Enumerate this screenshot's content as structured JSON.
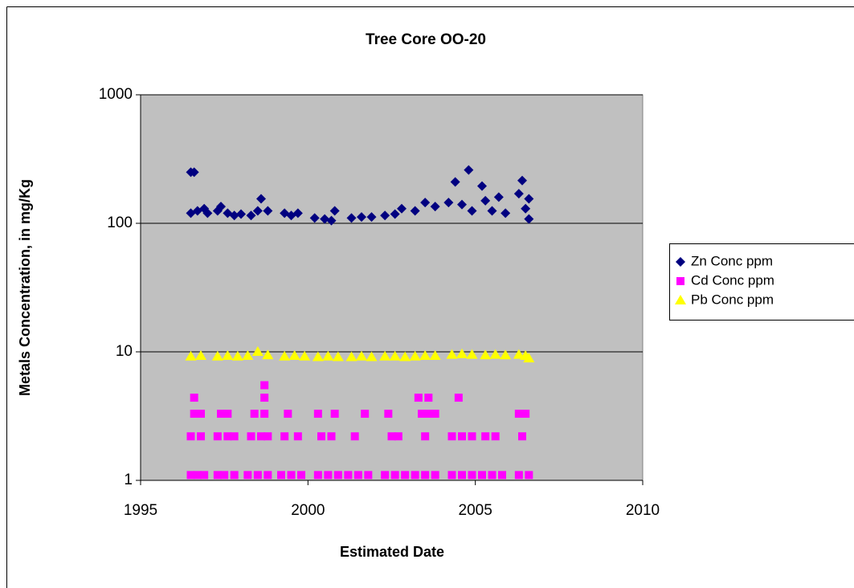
{
  "chart_data": {
    "type": "scatter",
    "title": "Tree Core OO-20",
    "x_label": "Estimated Date",
    "y_label": "Metals Concentration, in mg/Kg",
    "xlim": [
      1995,
      2010
    ],
    "xticks": [
      1995,
      2000,
      2005,
      2010
    ],
    "ylim": [
      1,
      1000
    ],
    "yticks": [
      1,
      10,
      100,
      1000
    ],
    "y_log": true,
    "grid": true,
    "legend": "right",
    "background": "#c0c0c0",
    "series": [
      {
        "name": "Zn Conc ppm",
        "color": "#000080",
        "marker": "diamond",
        "x": [
          1996.5,
          1996.6,
          1996.5,
          1996.7,
          1996.9,
          1997.0,
          1997.3,
          1997.4,
          1997.6,
          1997.8,
          1998.0,
          1998.3,
          1998.5,
          1998.6,
          1998.8,
          1999.3,
          1999.5,
          1999.7,
          2000.2,
          2000.5,
          2000.7,
          2000.8,
          2001.3,
          2001.6,
          2001.9,
          2002.3,
          2002.6,
          2002.8,
          2003.2,
          2003.5,
          2003.8,
          2004.2,
          2004.4,
          2004.6,
          2004.8,
          2004.9,
          2005.2,
          2005.3,
          2005.5,
          2005.7,
          2005.9,
          2006.3,
          2006.4,
          2006.5,
          2006.6,
          2006.6
        ],
        "values": [
          250,
          250,
          120,
          125,
          130,
          120,
          125,
          135,
          120,
          115,
          118,
          115,
          125,
          155,
          125,
          120,
          115,
          120,
          110,
          108,
          105,
          125,
          110,
          112,
          112,
          115,
          118,
          130,
          125,
          145,
          135,
          145,
          210,
          140,
          260,
          125,
          195,
          150,
          125,
          160,
          120,
          170,
          215,
          130,
          155,
          108
        ]
      },
      {
        "name": "Cd Conc ppm",
        "color": "#ff00ff",
        "marker": "square",
        "x": [
          1996.5,
          1996.7,
          1996.9,
          1997.3,
          1997.5,
          1997.8,
          1998.2,
          1998.5,
          1998.8,
          1999.2,
          1999.5,
          1999.8,
          2000.3,
          2000.6,
          2000.9,
          2001.2,
          2001.5,
          2001.8,
          2002.3,
          2002.6,
          2002.9,
          2003.2,
          2003.5,
          2003.8,
          2004.3,
          2004.6,
          2004.9,
          2005.2,
          2005.5,
          2005.8,
          2006.3,
          2006.6,
          1996.5,
          1996.8,
          1997.3,
          1997.6,
          1997.8,
          1998.3,
          1998.6,
          1998.8,
          1999.3,
          1999.7,
          2000.4,
          2000.7,
          2001.4,
          2002.5,
          2002.7,
          2003.5,
          2004.3,
          2004.6,
          2004.9,
          2005.3,
          2005.6,
          2006.4,
          1996.6,
          1996.8,
          1997.4,
          1997.6,
          1998.4,
          1998.7,
          1999.4,
          2000.3,
          2000.8,
          2001.7,
          2002.4,
          2003.4,
          2003.6,
          2003.8,
          2006.3,
          2006.5,
          1996.6,
          1998.7,
          2003.3,
          2003.6,
          2004.5,
          1998.7
        ],
        "values": [
          1.1,
          1.1,
          1.1,
          1.1,
          1.1,
          1.1,
          1.1,
          1.1,
          1.1,
          1.1,
          1.1,
          1.1,
          1.1,
          1.1,
          1.1,
          1.1,
          1.1,
          1.1,
          1.1,
          1.1,
          1.1,
          1.1,
          1.1,
          1.1,
          1.1,
          1.1,
          1.1,
          1.1,
          1.1,
          1.1,
          1.1,
          1.1,
          2.2,
          2.2,
          2.2,
          2.2,
          2.2,
          2.2,
          2.2,
          2.2,
          2.2,
          2.2,
          2.2,
          2.2,
          2.2,
          2.2,
          2.2,
          2.2,
          2.2,
          2.2,
          2.2,
          2.2,
          2.2,
          2.2,
          3.3,
          3.3,
          3.3,
          3.3,
          3.3,
          3.3,
          3.3,
          3.3,
          3.3,
          3.3,
          3.3,
          3.3,
          3.3,
          3.3,
          3.3,
          3.3,
          4.4,
          4.4,
          4.4,
          4.4,
          4.4,
          5.5
        ]
      },
      {
        "name": "Pb Conc ppm",
        "color": "#ffff00",
        "marker": "triangle",
        "x": [
          1996.5,
          1996.8,
          1997.3,
          1997.6,
          1997.9,
          1998.2,
          1998.5,
          1998.8,
          1999.3,
          1999.6,
          1999.9,
          2000.3,
          2000.6,
          2000.9,
          2001.3,
          2001.6,
          2001.9,
          2002.3,
          2002.6,
          2002.9,
          2003.2,
          2003.5,
          2003.8,
          2004.3,
          2004.6,
          2004.9,
          2005.3,
          2005.6,
          2005.9,
          2006.3,
          2006.5,
          2006.6
        ],
        "values": [
          9.2,
          9.3,
          9.2,
          9.3,
          9.2,
          9.3,
          10,
          9.4,
          9.2,
          9.3,
          9.2,
          9.1,
          9.2,
          9.1,
          9.1,
          9.2,
          9.1,
          9.2,
          9.2,
          9.1,
          9.2,
          9.3,
          9.3,
          9.5,
          9.6,
          9.5,
          9.4,
          9.5,
          9.4,
          9.5,
          9.3,
          8.9
        ]
      }
    ]
  }
}
